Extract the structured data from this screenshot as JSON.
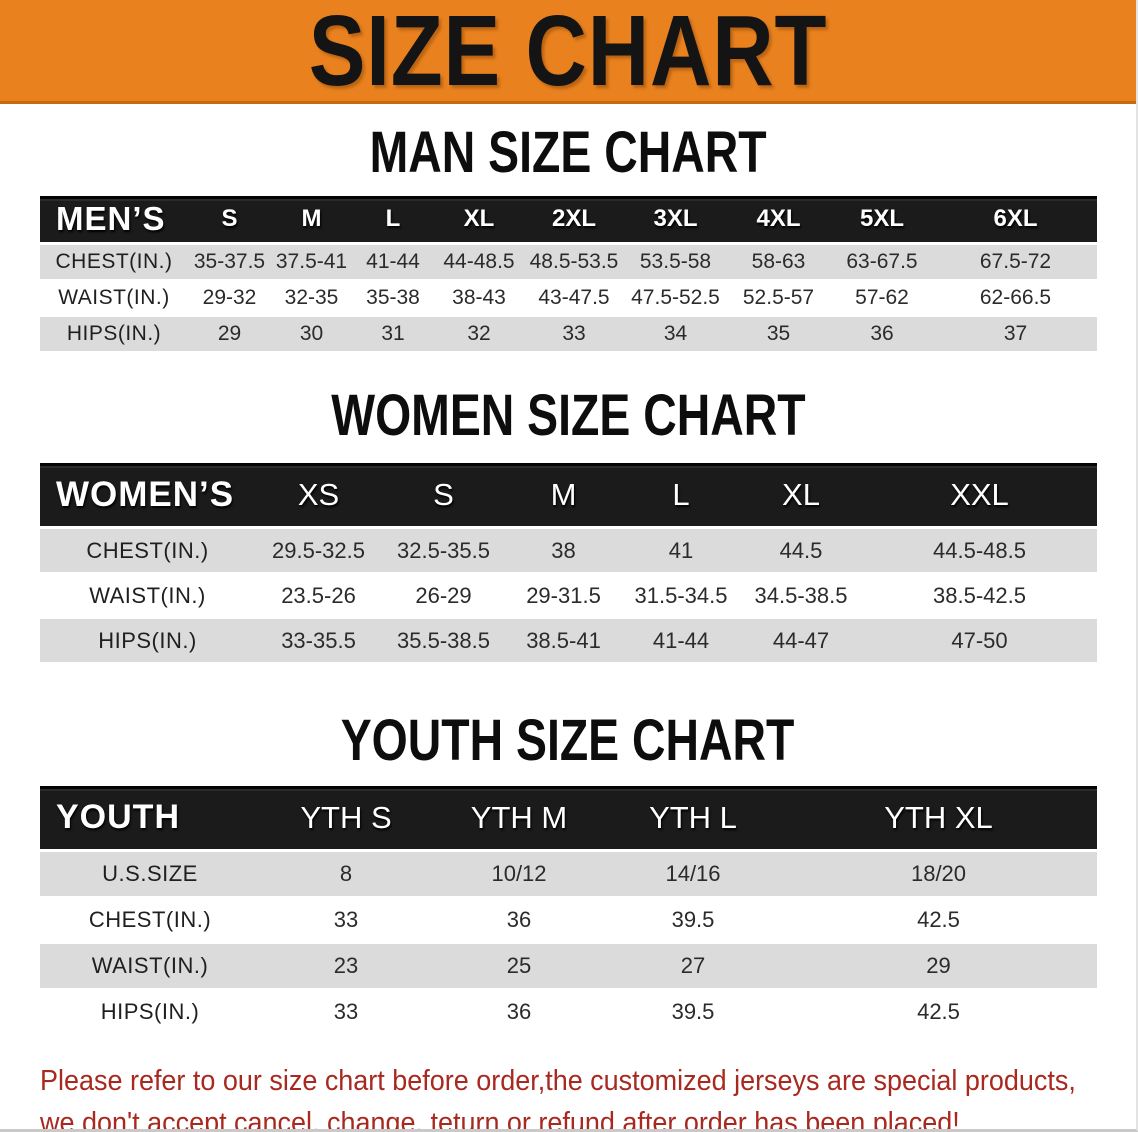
{
  "banner": {
    "title": "SIZE CHART"
  },
  "colors": {
    "banner_bg": "#E8811E",
    "banner_border": "#C76A10",
    "table_header_bg": "#1B1B1B",
    "row_alt_bg": "#DBDBDB",
    "disclaimer_text": "#A8291F"
  },
  "men": {
    "heading": "MAN SIZE CHART",
    "table": {
      "header_label": "MEN’S",
      "columns": [
        "S",
        "M",
        "L",
        "XL",
        "2XL",
        "3XL",
        "4XL",
        "5XL",
        "6XL"
      ],
      "rows": [
        {
          "label": "CHEST(IN.)",
          "values": [
            "35-37.5",
            "37.5-41",
            "41-44",
            "44-48.5",
            "48.5-53.5",
            "53.5-58",
            "58-63",
            "63-67.5",
            "67.5-72"
          ]
        },
        {
          "label": "WAIST(IN.)",
          "values": [
            "29-32",
            "32-35",
            "35-38",
            "38-43",
            "43-47.5",
            "47.5-52.5",
            "52.5-57",
            "57-62",
            "62-66.5"
          ]
        },
        {
          "label": "HIPS(IN.)",
          "values": [
            "29",
            "30",
            "31",
            "32",
            "33",
            "34",
            "35",
            "36",
            "37"
          ]
        }
      ]
    }
  },
  "women": {
    "heading": "WOMEN SIZE CHART",
    "table": {
      "header_label": "WOMEN’S",
      "columns": [
        "XS",
        "S",
        "M",
        "L",
        "XL",
        "XXL"
      ],
      "rows": [
        {
          "label": "CHEST(IN.)",
          "values": [
            "29.5-32.5",
            "32.5-35.5",
            "38",
            "41",
            "44.5",
            "44.5-48.5"
          ]
        },
        {
          "label": "WAIST(IN.)",
          "values": [
            "23.5-26",
            "26-29",
            "29-31.5",
            "31.5-34.5",
            "34.5-38.5",
            "38.5-42.5"
          ]
        },
        {
          "label": "HIPS(IN.)",
          "values": [
            "33-35.5",
            "35.5-38.5",
            "38.5-41",
            "41-44",
            "44-47",
            "47-50"
          ]
        }
      ]
    }
  },
  "youth": {
    "heading": "YOUTH SIZE CHART",
    "table": {
      "header_label": "YOUTH",
      "columns": [
        "YTH S",
        "YTH M",
        "YTH L",
        "YTH XL"
      ],
      "rows": [
        {
          "label": "U.S.SIZE",
          "values": [
            "8",
            "10/12",
            "14/16",
            "18/20"
          ]
        },
        {
          "label": "CHEST(IN.)",
          "values": [
            "33",
            "36",
            "39.5",
            "42.5"
          ]
        },
        {
          "label": "WAIST(IN.)",
          "values": [
            "23",
            "25",
            "27",
            "29"
          ]
        },
        {
          "label": "HIPS(IN.)",
          "values": [
            "33",
            "36",
            "39.5",
            "42.5"
          ]
        }
      ]
    }
  },
  "disclaimer": {
    "line1": "Please refer to our size chart before order,the customized jerseys are special products,",
    "line2": "we don't accept cancel, change, teturn or refund after order has been placed!"
  }
}
